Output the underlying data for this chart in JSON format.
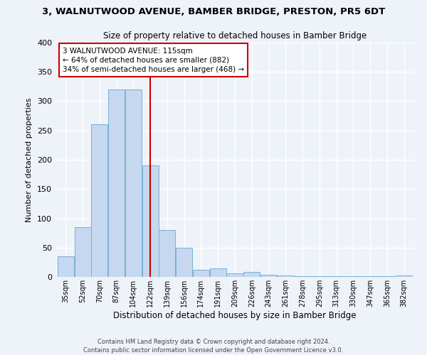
{
  "title": "3, WALNUTWOOD AVENUE, BAMBER BRIDGE, PRESTON, PR5 6DT",
  "subtitle": "Size of property relative to detached houses in Bamber Bridge",
  "xlabel": "Distribution of detached houses by size in Bamber Bridge",
  "ylabel": "Number of detached properties",
  "categories": [
    "35sqm",
    "52sqm",
    "70sqm",
    "87sqm",
    "104sqm",
    "122sqm",
    "139sqm",
    "156sqm",
    "174sqm",
    "191sqm",
    "209sqm",
    "226sqm",
    "243sqm",
    "261sqm",
    "278sqm",
    "295sqm",
    "313sqm",
    "330sqm",
    "347sqm",
    "365sqm",
    "382sqm"
  ],
  "bar_heights": [
    35,
    85,
    260,
    320,
    320,
    190,
    80,
    50,
    12,
    15,
    6,
    9,
    4,
    2,
    1,
    1,
    1,
    1,
    1,
    1,
    3
  ],
  "bar_color": "#c5d8f0",
  "bar_edge_color": "#7bafd4",
  "vline_x": 5,
  "vline_color": "#cc0000",
  "ylim": [
    0,
    400
  ],
  "yticks": [
    0,
    50,
    100,
    150,
    200,
    250,
    300,
    350,
    400
  ],
  "annotation_title": "3 WALNUTWOOD AVENUE: 115sqm",
  "annotation_line1": "← 64% of detached houses are smaller (882)",
  "annotation_line2": "34% of semi-detached houses are larger (468) →",
  "annotation_box_color": "#ffffff",
  "annotation_box_edge": "#cc0000",
  "footer_line1": "Contains HM Land Registry data © Crown copyright and database right 2024.",
  "footer_line2": "Contains public sector information licensed under the Open Government Licence v3.0.",
  "bg_color": "#eef2f9",
  "grid_color": "#ffffff"
}
